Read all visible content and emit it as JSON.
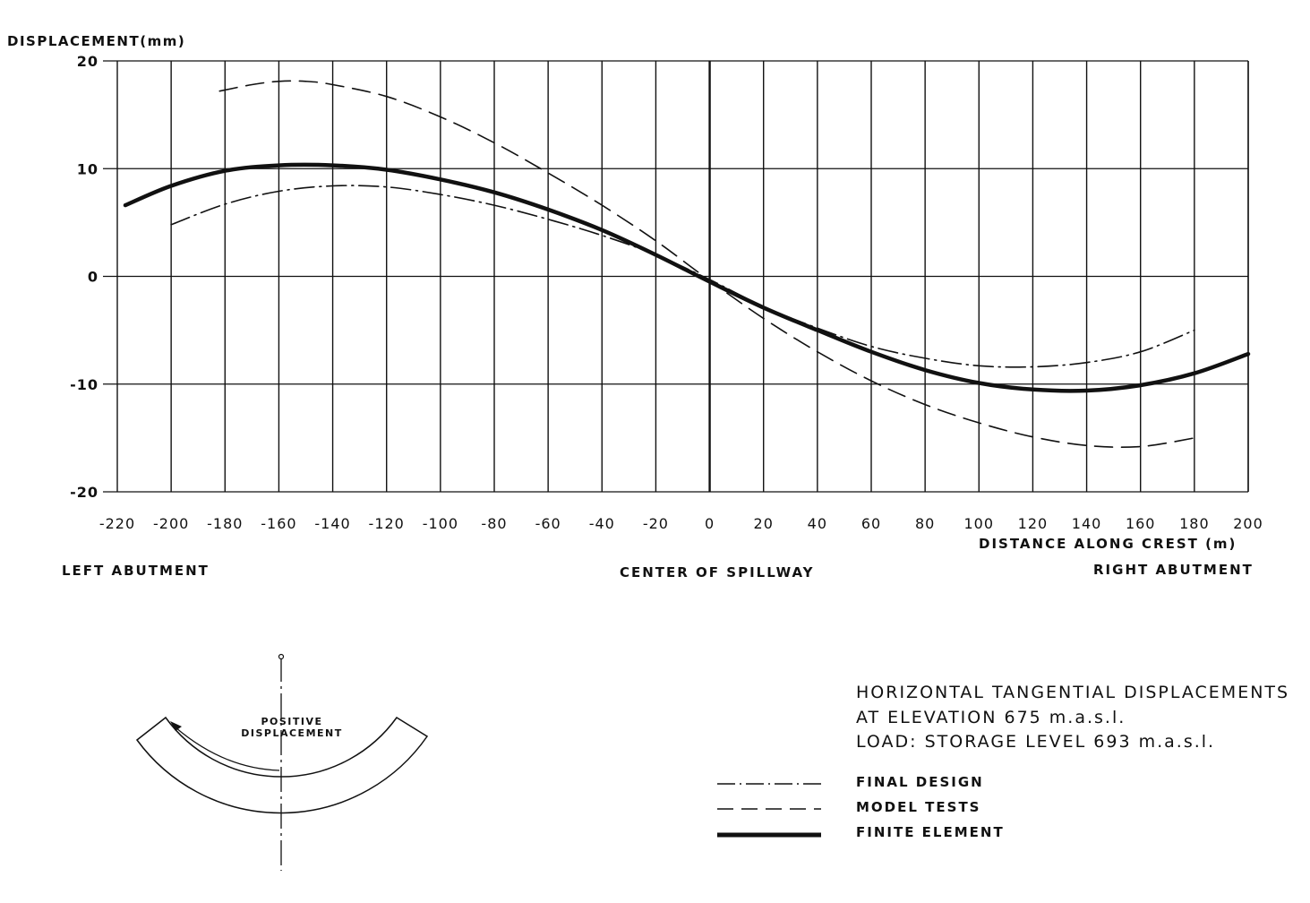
{
  "chart_data": {
    "type": "line",
    "ylabel": "DISPLACEMENT(mm)",
    "xlabel": "DISTANCE ALONG CREST (m)",
    "xlim": [
      -220,
      200
    ],
    "ylim": [
      -20,
      20
    ],
    "x_ticks": [
      -220,
      -200,
      -180,
      -160,
      -140,
      -120,
      -100,
      -80,
      -60,
      -40,
      -20,
      0,
      20,
      40,
      60,
      80,
      100,
      120,
      140,
      160,
      180,
      200
    ],
    "x_tick_labels": [
      "-220",
      "-200",
      "-180",
      "-160",
      "-140",
      "-120",
      "-100",
      "-80",
      "-60",
      "-40",
      "-20",
      "0",
      "20",
      "40",
      "60",
      "80",
      "100",
      "120",
      "140",
      "160",
      "180",
      "200"
    ],
    "y_ticks": [
      -20,
      -10,
      0,
      10,
      20
    ],
    "y_tick_labels": [
      "-20",
      "-10",
      "0",
      "10",
      "20"
    ],
    "grid": true,
    "legend_position": "bottom-right",
    "series": [
      {
        "name": "FINAL DESIGN",
        "style": "dash-dot",
        "x": [
          -200,
          -180,
          -160,
          -140,
          -120,
          -100,
          -80,
          -60,
          -40,
          -20,
          0,
          20,
          40,
          60,
          80,
          100,
          120,
          140,
          160,
          180
        ],
        "y": [
          4.8,
          6.7,
          7.9,
          8.4,
          8.3,
          7.6,
          6.6,
          5.3,
          3.8,
          2.0,
          -0.3,
          -2.8,
          -4.8,
          -6.5,
          -7.6,
          -8.3,
          -8.4,
          -8.0,
          -7.0,
          -5.0
        ]
      },
      {
        "name": "MODEL TESTS",
        "style": "dashed",
        "x": [
          -182,
          -170,
          -160,
          -150,
          -140,
          -120,
          -100,
          -80,
          -60,
          -40,
          -20,
          0,
          20,
          40,
          60,
          80,
          100,
          120,
          140,
          160,
          180
        ],
        "y": [
          17.2,
          17.8,
          18.1,
          18.1,
          17.8,
          16.7,
          14.8,
          12.4,
          9.6,
          6.6,
          3.3,
          -0.4,
          -3.9,
          -7.0,
          -9.7,
          -11.9,
          -13.6,
          -14.9,
          -15.7,
          -15.8,
          -15.0
        ]
      },
      {
        "name": "FINITE ELEMENT",
        "style": "thick-solid",
        "x": [
          -217,
          -200,
          -180,
          -160,
          -140,
          -120,
          -100,
          -80,
          -60,
          -40,
          -20,
          0,
          20,
          40,
          60,
          80,
          100,
          120,
          140,
          160,
          180,
          200
        ],
        "y": [
          6.6,
          8.4,
          9.8,
          10.3,
          10.3,
          9.9,
          9.0,
          7.8,
          6.2,
          4.3,
          2.0,
          -0.5,
          -2.9,
          -5.0,
          -7.0,
          -8.7,
          -9.9,
          -10.5,
          -10.6,
          -10.1,
          -9.0,
          -7.2
        ]
      }
    ]
  },
  "annotations": {
    "left": "LEFT ABUTMENT",
    "center": "CENTER OF SPILLWAY",
    "right": "RIGHT ABUTMENT",
    "positive_label": "POSITIVE DISPLACEMENT"
  },
  "title_lines": [
    "HORIZONTAL TANGENTIAL DISPLACEMENTS",
    "AT ELEVATION 675 m.a.s.l.",
    "LOAD: STORAGE LEVEL 693 m.a.s.l."
  ]
}
